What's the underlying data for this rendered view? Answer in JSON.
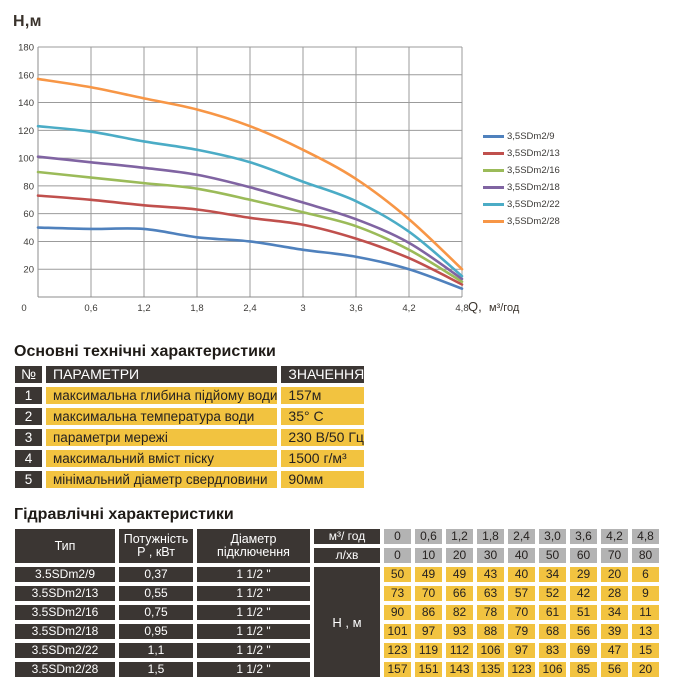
{
  "chart": {
    "y_axis_title": "Н,м",
    "x_axis_q": "Q,",
    "x_axis_units": "м³/год"
  },
  "chart_data": {
    "type": "line",
    "title": "",
    "xlabel": "Q, м³/год",
    "ylabel": "Н,м",
    "x": [
      0,
      0.6,
      1.2,
      1.8,
      2.4,
      3.0,
      3.6,
      4.2,
      4.8
    ],
    "x_tick_labels": [
      "0",
      "0,6",
      "1,2",
      "1,8",
      "2,4",
      "3",
      "3,6",
      "4,2",
      "4,8"
    ],
    "y_ticks": [
      180,
      160,
      140,
      120,
      100,
      80,
      60,
      40,
      20
    ],
    "origin_label": "0",
    "ylim": [
      0,
      180
    ],
    "grid": true,
    "legend_position": "right",
    "series": [
      {
        "name": "3,5SDm2/9",
        "color": "#4F81BD",
        "values": [
          50,
          49,
          49,
          43,
          40,
          34,
          29,
          20,
          6
        ]
      },
      {
        "name": "3,5SDm2/13",
        "color": "#C0504D",
        "values": [
          73,
          70,
          66,
          63,
          57,
          52,
          42,
          28,
          9
        ]
      },
      {
        "name": "3,5SDm2/16",
        "color": "#9BBB59",
        "values": [
          90,
          86,
          82,
          78,
          70,
          61,
          51,
          34,
          11
        ]
      },
      {
        "name": "3,5SDm2/18",
        "color": "#8064A2",
        "values": [
          101,
          97,
          93,
          88,
          79,
          68,
          56,
          39,
          13
        ]
      },
      {
        "name": "3,5SDm2/22",
        "color": "#4BACC6",
        "values": [
          123,
          119,
          112,
          106,
          97,
          83,
          69,
          47,
          15
        ]
      },
      {
        "name": "3,5SDm2/28",
        "color": "#F79646",
        "values": [
          157,
          151,
          143,
          135,
          123,
          106,
          85,
          56,
          20
        ]
      }
    ]
  },
  "tech_specs": {
    "title": "Основні технічні характеристики",
    "headers": {
      "num": "№",
      "param": "ПАРАМЕТРИ",
      "value": "ЗНАЧЕННЯ"
    },
    "rows": [
      {
        "num": "1",
        "param": "максимальна глибина підйому води",
        "value": "157м"
      },
      {
        "num": "2",
        "param": "максимальна температура води",
        "value": "35° С"
      },
      {
        "num": "3",
        "param": "параметри мережі",
        "value": "230 В/50 Гц"
      },
      {
        "num": "4",
        "param": "максимальний вміст піску",
        "value": "1500 г/м³"
      },
      {
        "num": "5",
        "param": "мінімальний діаметр свердловини",
        "value": "90мм"
      }
    ]
  },
  "hydraulic": {
    "title": "Гідравлічні характеристики",
    "headers": {
      "type": "Тип",
      "power": "Потужність\nР , кВт",
      "diameter": "Діаметр\nпідключення",
      "flow_m3h": "м³/ год",
      "flow_lmin": "л/хв",
      "head": "Н , м"
    },
    "flow_m3h_values": [
      "0",
      "0,6",
      "1,2",
      "1,8",
      "2,4",
      "3,0",
      "3,6",
      "4,2",
      "4,8"
    ],
    "flow_lmin_values": [
      "0",
      "10",
      "20",
      "30",
      "40",
      "50",
      "60",
      "70",
      "80"
    ],
    "rows": [
      {
        "type": "3.5SDm2/9",
        "power": "0,37",
        "diameter": "1 1/2 \"",
        "head": [
          50,
          49,
          49,
          43,
          40,
          34,
          29,
          20,
          6
        ]
      },
      {
        "type": "3.5SDm2/13",
        "power": "0,55",
        "diameter": "1 1/2 \"",
        "head": [
          73,
          70,
          66,
          63,
          57,
          52,
          42,
          28,
          9
        ]
      },
      {
        "type": "3.5SDm2/16",
        "power": "0,75",
        "diameter": "1 1/2 \"",
        "head": [
          90,
          86,
          82,
          78,
          70,
          61,
          51,
          34,
          11
        ]
      },
      {
        "type": "3.5SDm2/18",
        "power": "0,95",
        "diameter": "1 1/2 \"",
        "head": [
          101,
          97,
          93,
          88,
          79,
          68,
          56,
          39,
          13
        ]
      },
      {
        "type": "3.5SDm2/22",
        "power": "1,1",
        "diameter": "1 1/2 \"",
        "head": [
          123,
          119,
          112,
          106,
          97,
          83,
          69,
          47,
          15
        ]
      },
      {
        "type": "3.5SDm2/28",
        "power": "1,5",
        "diameter": "1 1/2 \"",
        "head": [
          157,
          151,
          143,
          135,
          123,
          106,
          85,
          56,
          20
        ]
      }
    ]
  },
  "colors": {
    "accent_yellow": "#F2C340",
    "dark_cell": "#3B3633",
    "gray_cell": "#B3B3B3",
    "grid_line": "#9b9b9b",
    "axis_line": "#8c8c8c"
  }
}
